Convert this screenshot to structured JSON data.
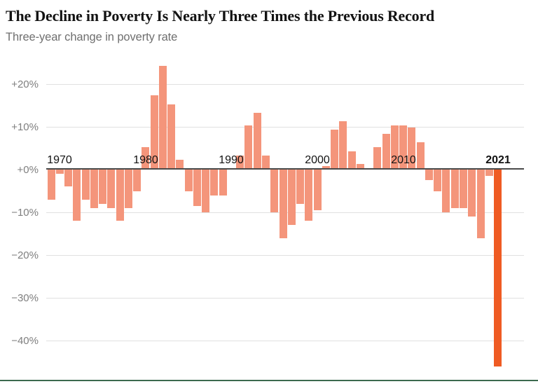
{
  "header": {
    "title": "The Decline in Poverty Is Nearly Three Times the Previous Record",
    "subtitle": "Three-year change in poverty rate"
  },
  "divider": {
    "color": "#3c6a4e"
  },
  "chart_data": {
    "type": "bar",
    "title": "The Decline in Poverty Is Nearly Three Times the Previous Record",
    "subtitle": "Three-year change in poverty rate",
    "unit": "percent",
    "grid": true,
    "bar_color": "#f4957b",
    "highlight_color": "#ef5b23",
    "highlight_year": 2021,
    "ylim": [
      -47,
      25
    ],
    "years": [
      1969,
      1970,
      1971,
      1972,
      1973,
      1974,
      1975,
      1976,
      1977,
      1978,
      1979,
      1980,
      1981,
      1982,
      1983,
      1984,
      1985,
      1986,
      1987,
      1988,
      1989,
      1990,
      1991,
      1992,
      1993,
      1994,
      1995,
      1996,
      1997,
      1998,
      1999,
      2000,
      2001,
      2002,
      2003,
      2004,
      2005,
      2006,
      2007,
      2008,
      2009,
      2010,
      2011,
      2012,
      2013,
      2014,
      2015,
      2016,
      2017,
      2018,
      2019,
      2020,
      2021
    ],
    "values": [
      -7,
      -1,
      -4,
      -12,
      -7,
      -9,
      -8,
      -9,
      -12,
      -9,
      -5,
      5,
      17,
      24,
      15,
      2,
      -5,
      -8.5,
      -10,
      -6,
      -6,
      0,
      3,
      10,
      13,
      3,
      -10,
      -16,
      -13,
      -8,
      -12,
      -9.5,
      0.5,
      9,
      11,
      4,
      1,
      0,
      5,
      8,
      10,
      10,
      9.5,
      6,
      -2.5,
      -5,
      -10,
      -9,
      -9,
      -11,
      -16,
      -1.5,
      -46
    ],
    "y_ticks": [
      {
        "label": "+20%",
        "value": 20
      },
      {
        "label": "+10%",
        "value": 10
      },
      {
        "label": "+0%",
        "value": 0
      },
      {
        "label": "−10%",
        "value": -10
      },
      {
        "label": "−20%",
        "value": -20
      },
      {
        "label": "−30%",
        "value": -30
      },
      {
        "label": "−40%",
        "value": -40
      }
    ],
    "x_ticks": [
      {
        "label": "1970",
        "value": 1970,
        "bold": false
      },
      {
        "label": "1980",
        "value": 1980,
        "bold": false
      },
      {
        "label": "1990",
        "value": 1990,
        "bold": false
      },
      {
        "label": "2000",
        "value": 2000,
        "bold": false
      },
      {
        "label": "2010",
        "value": 2010,
        "bold": false
      },
      {
        "label": "2021",
        "value": 2021,
        "bold": true
      }
    ]
  }
}
